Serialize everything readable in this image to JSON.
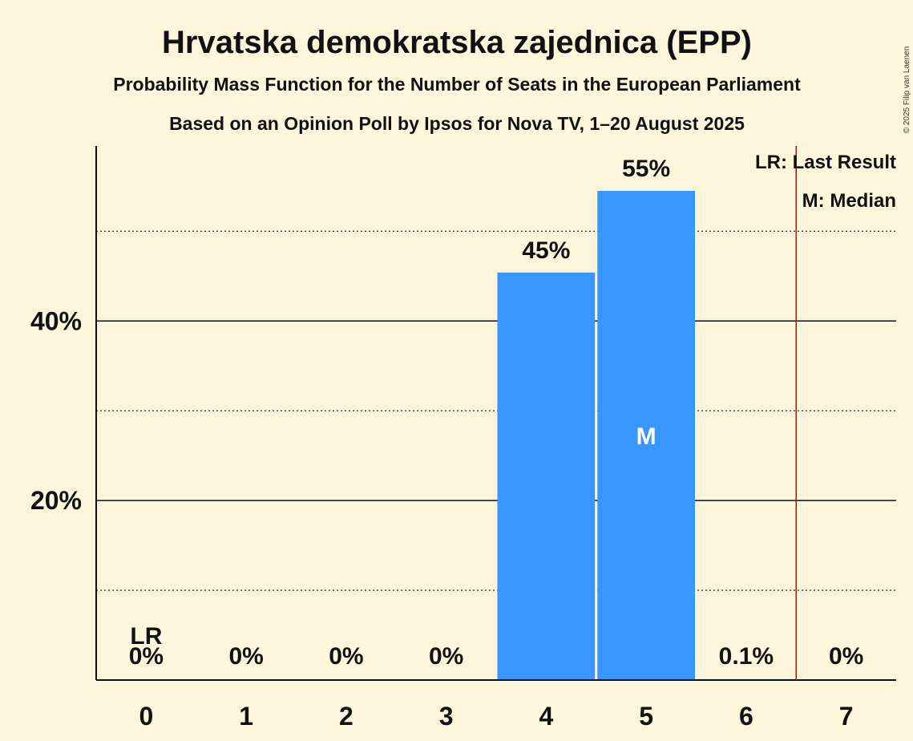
{
  "chart_data": {
    "type": "bar",
    "title": "Hrvatska demokratska zajednica (EPP)",
    "subtitle": "Probability Mass Function for the Number of Seats in the European Parliament",
    "subtitle2": "Based on an Opinion Poll by Ipsos for Nova TV, 1–20 August 2025",
    "categories": [
      "0",
      "1",
      "2",
      "3",
      "4",
      "5",
      "6",
      "7"
    ],
    "values": [
      0,
      0,
      0,
      0,
      45.4,
      54.5,
      0.1,
      0
    ],
    "value_labels": [
      "0%",
      "0%",
      "0%",
      "0%",
      "45%",
      "55%",
      "0.1%",
      "0%"
    ],
    "ylim": [
      0,
      59.5
    ],
    "y_major_ticks": [
      20,
      40
    ],
    "y_major_labels": [
      "20%",
      "40%"
    ],
    "y_minor_gridlines": [
      10,
      30,
      50
    ],
    "bar_color": "#3797ff",
    "last_result_marker": {
      "category_index": 0,
      "label": "LR"
    },
    "median_marker": {
      "category_index": 5,
      "label": "M"
    },
    "majority_line_at": 6.5,
    "majority_line_color": "#cc0000",
    "legend": [
      "LR: Last Result",
      "M: Median"
    ],
    "legend_position": "top-right",
    "xlabel": "",
    "ylabel": ""
  },
  "copyright": "© 2025 Filip van Laenen"
}
